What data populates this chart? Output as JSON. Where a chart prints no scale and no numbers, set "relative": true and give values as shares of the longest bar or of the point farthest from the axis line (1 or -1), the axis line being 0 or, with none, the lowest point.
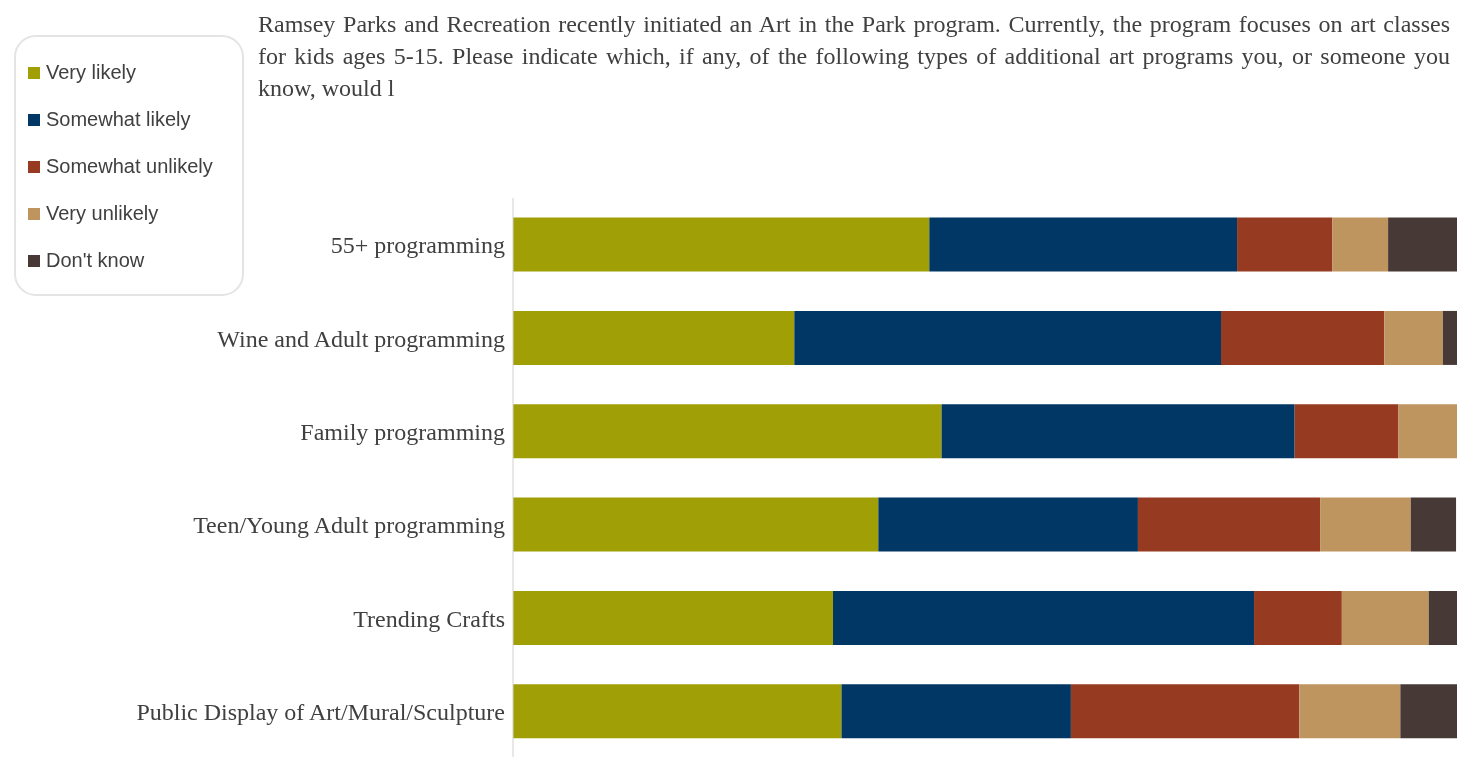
{
  "chart_data": {
    "type": "bar",
    "orientation": "horizontal",
    "stacked": true,
    "relative": true,
    "legend": "top left",
    "title": "Ramsey Parks and Recreation recently initiated an Art in the Park program. Currently, the program focuses on art classes for kids ages 5-15. Please indicate which, if any, of the following types of additional art programs you, or someone you know, would l",
    "categories": [
      "55+ programming",
      "Wine and Adult programming",
      "Family programming",
      "Teen/Young Adult programming",
      "Trending Crafts",
      "Public Display of Art/Mural/Sculpture"
    ],
    "series": [
      {
        "name": "Very likely",
        "color": "#a09f05",
        "values": [
          0.441,
          0.298,
          0.454,
          0.387,
          0.339,
          0.348
        ]
      },
      {
        "name": "Somewhat likely",
        "color": "#003764",
        "values": [
          0.326,
          0.452,
          0.374,
          0.275,
          0.446,
          0.243
        ]
      },
      {
        "name": "Somewhat unlikely",
        "color": "#973a22",
        "values": [
          0.101,
          0.173,
          0.11,
          0.193,
          0.093,
          0.242
        ]
      },
      {
        "name": "Very unlikely",
        "color": "#bf955f",
        "values": [
          0.059,
          0.062,
          0.062,
          0.096,
          0.092,
          0.107
        ]
      },
      {
        "name": "Don't know",
        "color": "#463936",
        "values": [
          0.073,
          0.015,
          0,
          0.048,
          0.03,
          0.06
        ]
      }
    ]
  }
}
